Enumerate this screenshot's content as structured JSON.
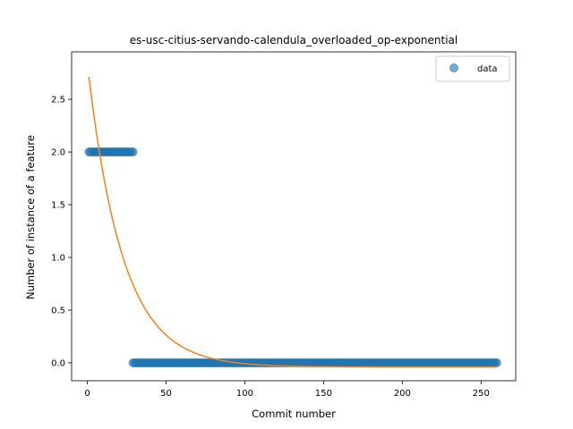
{
  "chart_data": {
    "type": "scatter",
    "title": "es-usc-citius-servando-calendula_overloaded_op-exponential",
    "xlabel": "Commit number",
    "ylabel": "Number of instance of a feature",
    "xlim": [
      -10,
      272
    ],
    "ylim": [
      -0.17,
      2.95
    ],
    "xticks": [
      0,
      50,
      100,
      150,
      200,
      250
    ],
    "yticks": [
      0.0,
      0.5,
      1.0,
      1.5,
      2.0,
      2.5
    ],
    "legend": {
      "position": "top-right",
      "entries": [
        "data"
      ]
    },
    "grid": false,
    "series": [
      {
        "name": "data",
        "kind": "scatter",
        "color": "#1f77b4",
        "segments": [
          {
            "x_from": 1,
            "x_to": 29,
            "y": 2
          },
          {
            "x_from": 29,
            "x_to": 260,
            "y": 0
          }
        ]
      },
      {
        "kind": "line",
        "color": "#ff7f0e",
        "model": "exponential",
        "a": 2.88,
        "b": 0.045,
        "c": -0.04,
        "x_range": [
          1,
          260
        ]
      }
    ]
  }
}
